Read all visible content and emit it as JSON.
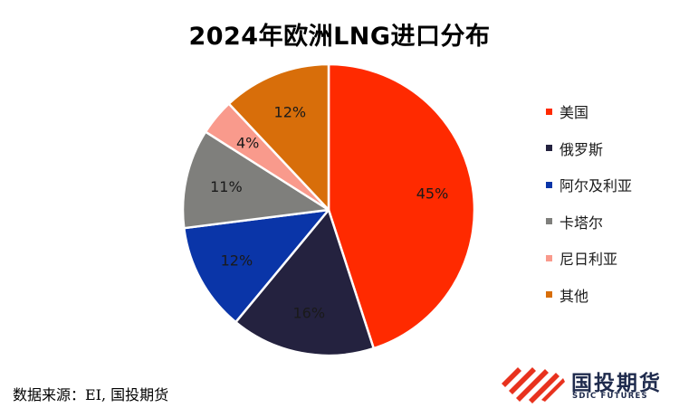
{
  "colors": {
    "background": "#ffffff",
    "slice_border": "#ffffff",
    "brand_red": "#e8321e",
    "brand_navy": "#1f2b4d"
  },
  "chart_data": {
    "type": "pie",
    "title": "2024年欧洲LNG进口分布",
    "start_angle_deg": 0,
    "direction": "clockwise",
    "legend_position": "right",
    "slices": [
      {
        "label": "美国",
        "value": 45,
        "value_label": "45%",
        "color": "#ff2a00"
      },
      {
        "label": "俄罗斯",
        "value": 16,
        "value_label": "16%",
        "color": "#24223f"
      },
      {
        "label": "阿尔及利亚",
        "value": 12,
        "value_label": "12%",
        "color": "#0a35a8"
      },
      {
        "label": "卡塔尔",
        "value": 11,
        "value_label": "11%",
        "color": "#7f7f7c"
      },
      {
        "label": "尼日利亚",
        "value": 4,
        "value_label": "4%",
        "color": "#f99a8c"
      },
      {
        "label": "其他",
        "value": 12,
        "value_label": "12%",
        "color": "#d86e0a"
      }
    ]
  },
  "footer": {
    "source": "数据来源：EI, 国投期货"
  },
  "brand": {
    "name": "国投期货",
    "subtitle": "SDIC FUTURES",
    "icon": "sdic-stripes-logo"
  }
}
